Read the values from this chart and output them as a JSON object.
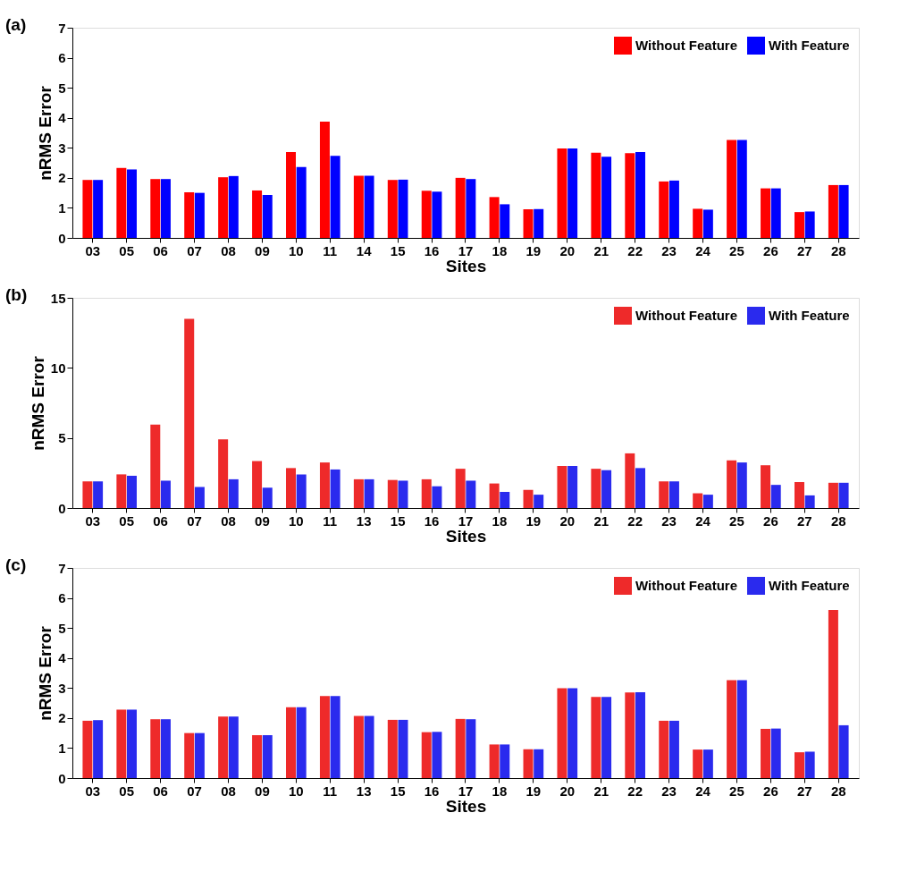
{
  "chart_data": [
    {
      "type": "bar",
      "title": "(a)",
      "xlabel": "Sites",
      "ylabel": "nRMS Error",
      "categories": [
        "03",
        "05",
        "06",
        "07",
        "08",
        "09",
        "10",
        "11",
        "14",
        "15",
        "16",
        "17",
        "18",
        "19",
        "20",
        "21",
        "22",
        "23",
        "24",
        "25",
        "26",
        "27",
        "28"
      ],
      "ylim": [
        0,
        7
      ],
      "yticks": [
        0,
        1,
        2,
        3,
        4,
        5,
        6,
        7
      ],
      "grid": false,
      "legend": "top right",
      "series": [
        {
          "name": "Without Feature",
          "color": "#ff0000",
          "values": [
            1.93,
            2.33,
            1.96,
            1.52,
            2.02,
            1.58,
            2.86,
            3.87,
            2.07,
            1.93,
            1.57,
            2.0,
            1.36,
            0.95,
            2.98,
            2.84,
            2.82,
            1.88,
            0.97,
            3.26,
            1.65,
            0.86,
            1.76
          ]
        },
        {
          "name": "With Feature",
          "color": "#0000ff",
          "values": [
            1.93,
            2.28,
            1.96,
            1.5,
            2.06,
            1.43,
            2.36,
            2.73,
            2.07,
            1.94,
            1.54,
            1.96,
            1.12,
            0.96,
            2.98,
            2.7,
            2.86,
            1.91,
            0.94,
            3.26,
            1.65,
            0.88,
            1.76
          ]
        }
      ]
    },
    {
      "type": "bar",
      "title": "(b)",
      "xlabel": "Sites",
      "ylabel": "nRMS Error",
      "categories": [
        "03",
        "05",
        "06",
        "07",
        "08",
        "09",
        "10",
        "11",
        "13",
        "15",
        "16",
        "17",
        "18",
        "19",
        "20",
        "21",
        "22",
        "23",
        "24",
        "25",
        "26",
        "27",
        "28"
      ],
      "ylim": [
        0,
        15
      ],
      "yticks": [
        0,
        5,
        10,
        15
      ],
      "grid": false,
      "legend": "top right",
      "series": [
        {
          "name": "Without Feature",
          "color": "#ee2a2a",
          "values": [
            1.9,
            2.4,
            5.95,
            13.5,
            4.9,
            3.35,
            2.85,
            3.25,
            2.05,
            2.0,
            2.05,
            2.8,
            1.75,
            1.3,
            3.0,
            2.8,
            3.9,
            1.9,
            1.05,
            3.4,
            3.05,
            1.85,
            1.8
          ]
        },
        {
          "name": "With Feature",
          "color": "#2a2aee",
          "values": [
            1.9,
            2.3,
            1.95,
            1.5,
            2.05,
            1.45,
            2.4,
            2.75,
            2.05,
            1.95,
            1.55,
            1.95,
            1.15,
            0.95,
            3.0,
            2.7,
            2.85,
            1.9,
            0.95,
            3.25,
            1.65,
            0.9,
            1.8
          ]
        }
      ]
    },
    {
      "type": "bar",
      "title": "(c)",
      "xlabel": "Sites",
      "ylabel": "nRMS Error",
      "categories": [
        "03",
        "05",
        "06",
        "07",
        "08",
        "09",
        "10",
        "11",
        "13",
        "15",
        "16",
        "17",
        "18",
        "19",
        "20",
        "21",
        "22",
        "23",
        "24",
        "25",
        "26",
        "27",
        "28"
      ],
      "ylim": [
        0,
        7
      ],
      "yticks": [
        0,
        1,
        2,
        3,
        4,
        5,
        6,
        7
      ],
      "grid": false,
      "legend": "top right",
      "series": [
        {
          "name": "Without Feature",
          "color": "#ee2a2a",
          "values": [
            1.91,
            2.28,
            1.96,
            1.5,
            2.05,
            1.43,
            2.36,
            2.73,
            2.07,
            1.94,
            1.53,
            1.97,
            1.12,
            0.96,
            2.99,
            2.7,
            2.85,
            1.91,
            0.95,
            3.26,
            1.64,
            0.86,
            5.6
          ]
        },
        {
          "name": "With Feature",
          "color": "#2a2aee",
          "values": [
            1.93,
            2.28,
            1.96,
            1.5,
            2.05,
            1.43,
            2.36,
            2.73,
            2.07,
            1.94,
            1.54,
            1.96,
            1.12,
            0.96,
            2.99,
            2.7,
            2.86,
            1.91,
            0.95,
            3.26,
            1.65,
            0.88,
            1.76
          ]
        }
      ]
    }
  ]
}
